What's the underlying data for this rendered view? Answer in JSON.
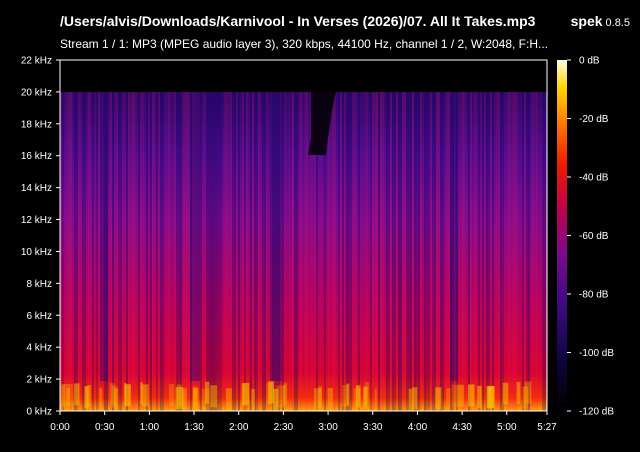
{
  "window": {
    "file_path": "/Users/alvis/Downloads/Karnivool - In Verses (2026)/07. All It Takes.mp3",
    "app_name": "spek",
    "app_version": "0.8.5",
    "stream_info": "Stream 1 / 1: MP3 (MPEG audio layer 3), 320 kbps, 44100 Hz, channel 1 / 2, W:2048, F:H..."
  },
  "spectrogram": {
    "freq_ticks": [
      "22 kHz",
      "20 kHz",
      "18 kHz",
      "16 kHz",
      "14 kHz",
      "12 kHz",
      "10 kHz",
      "8 kHz",
      "6 kHz",
      "4 kHz",
      "2 kHz",
      "0 kHz"
    ],
    "time_ticks": [
      "0:00",
      "0:30",
      "1:00",
      "1:30",
      "2:00",
      "2:30",
      "3:00",
      "3:30",
      "4:00",
      "4:30",
      "5:00",
      "5:27"
    ],
    "time_tick_seconds": [
      0,
      30,
      60,
      90,
      120,
      150,
      180,
      210,
      240,
      270,
      300,
      327
    ],
    "duration_seconds": 327,
    "max_freq_khz": 22,
    "cutoff_khz": 20,
    "db_ticks": [
      "0 dB",
      "-20 dB",
      "-40 dB",
      "-60 dB",
      "-80 dB",
      "-100 dB",
      "-120 dB"
    ],
    "colormap": [
      "#000000",
      "#1a0a4d",
      "#4b0a8a",
      "#8c0a8c",
      "#c8003c",
      "#f02000",
      "#ff8000",
      "#ffd000",
      "#ffffc0"
    ]
  }
}
